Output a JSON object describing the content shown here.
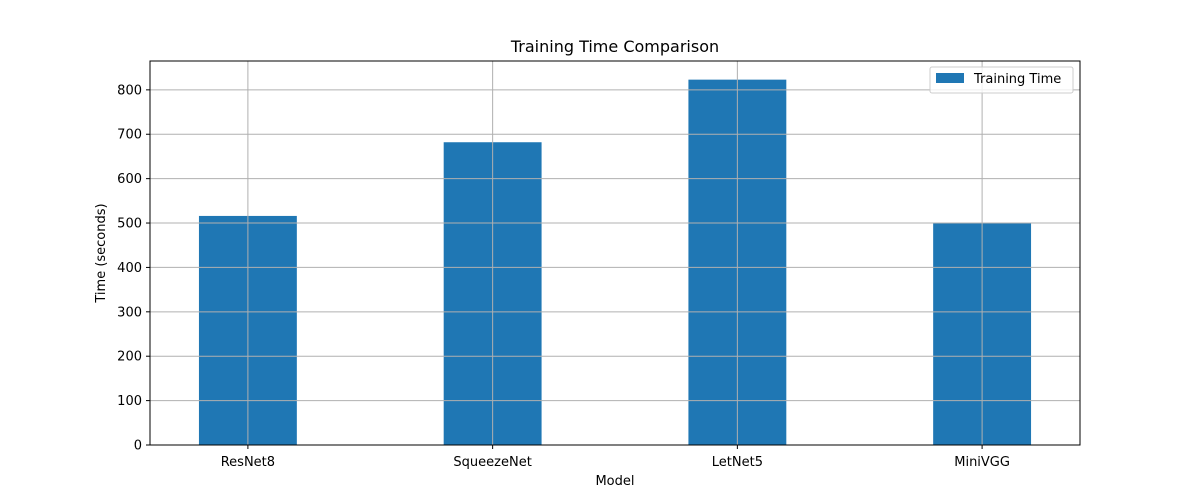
{
  "chart_data": {
    "type": "bar",
    "title": "Training Time Comparison",
    "xlabel": "Model",
    "ylabel": "Time (seconds)",
    "categories": [
      "ResNet8",
      "SqueezeNet",
      "LetNet5",
      "MiniVGG"
    ],
    "series": [
      {
        "name": "Training Time",
        "values": [
          516,
          682,
          823,
          499
        ]
      }
    ],
    "ylim": [
      0,
      865
    ],
    "yticks": [
      0,
      100,
      200,
      300,
      400,
      500,
      600,
      700,
      800
    ],
    "grid": true,
    "legend": "top-right",
    "colors": {
      "bar": "#1f77b4",
      "grid": "#b0b0b0",
      "axis": "#000000",
      "legend_border": "#cccccc"
    }
  }
}
